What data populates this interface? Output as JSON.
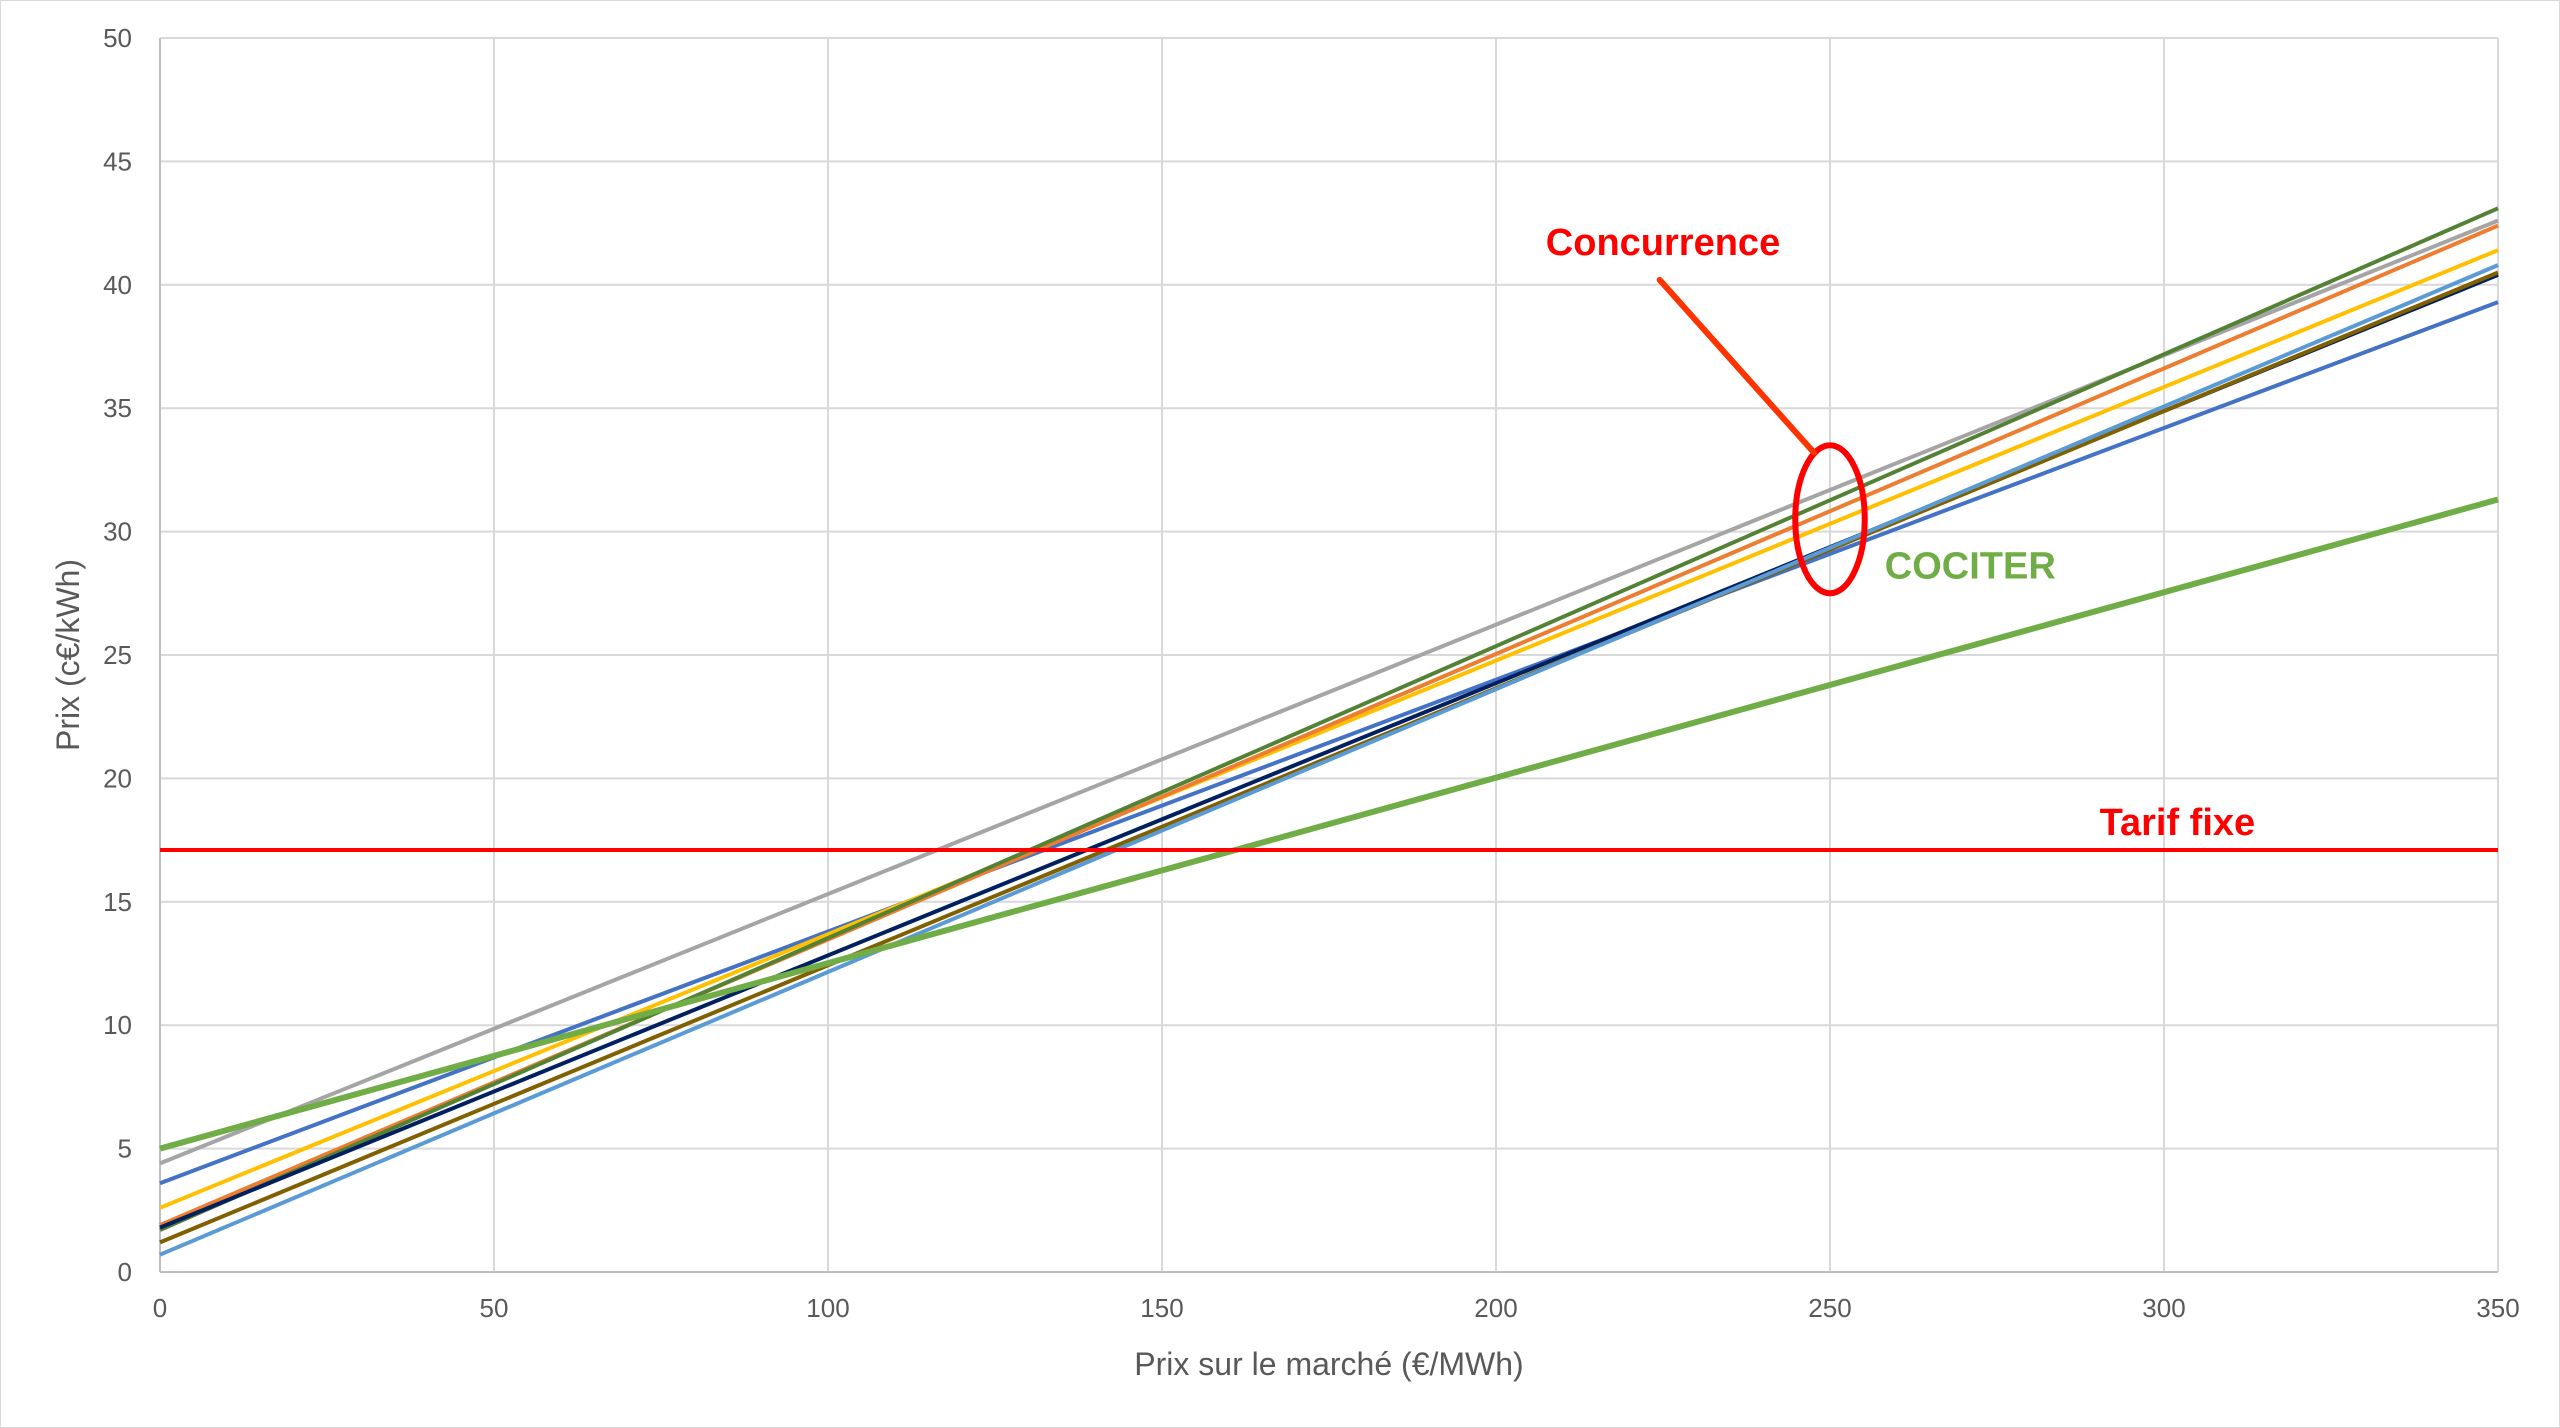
{
  "chart_data": {
    "type": "line",
    "title": "",
    "xlabel": "Prix sur le marché (€/MWh)",
    "ylabel": "Prix (c€/kWh)",
    "xlim": [
      0,
      350
    ],
    "ylim": [
      0,
      50
    ],
    "x_ticks": [
      0,
      50,
      100,
      150,
      200,
      250,
      300,
      350
    ],
    "y_ticks": [
      0,
      5,
      10,
      15,
      20,
      25,
      30,
      35,
      40,
      45,
      50
    ],
    "grid": true,
    "legend": "none",
    "x": [
      0,
      350
    ],
    "series": [
      {
        "color": "#a5a5a5",
        "values": [
          4.4,
          42.6
        ],
        "width": 4
      },
      {
        "color": "#4472c4",
        "values": [
          3.6,
          39.3
        ],
        "width": 4
      },
      {
        "color": "#ffc000",
        "values": [
          2.6,
          41.4
        ],
        "width": 4
      },
      {
        "color": "#ed7d31",
        "values": [
          1.9,
          42.4
        ],
        "width": 4
      },
      {
        "color": "#548235",
        "values": [
          1.7,
          43.1
        ],
        "width": 4
      },
      {
        "color": "#002060",
        "values": [
          1.8,
          40.4
        ],
        "width": 4
      },
      {
        "color": "#806000",
        "values": [
          1.2,
          40.5
        ],
        "width": 4
      },
      {
        "color": "#5b9bd5",
        "values": [
          0.7,
          40.8
        ],
        "width": 4
      },
      {
        "name": "COCITER",
        "color": "#70ad47",
        "values": [
          5.0,
          31.3
        ],
        "width": 6
      },
      {
        "name": "Tarif fixe",
        "color": "#ff0000",
        "values": [
          17.1,
          17.1
        ],
        "width": 4
      }
    ],
    "annotations": [
      {
        "text": "Concurrence",
        "color": "#ff0000",
        "x": 225,
        "y": 41.2
      },
      {
        "text": "COCITER",
        "color": "#70ad47",
        "x": 271,
        "y": 28.1
      },
      {
        "text": "Tarif fixe",
        "color": "#ff0000",
        "x": 302,
        "y": 17.7
      }
    ],
    "callout": {
      "ellipse_center": [
        250,
        30.5
      ],
      "ellipse_rx": 5.2,
      "ellipse_ry": 3.0,
      "pointer_from": [
        224.5,
        40.2
      ],
      "pointer_to": [
        247.6,
        33.2
      ]
    }
  }
}
